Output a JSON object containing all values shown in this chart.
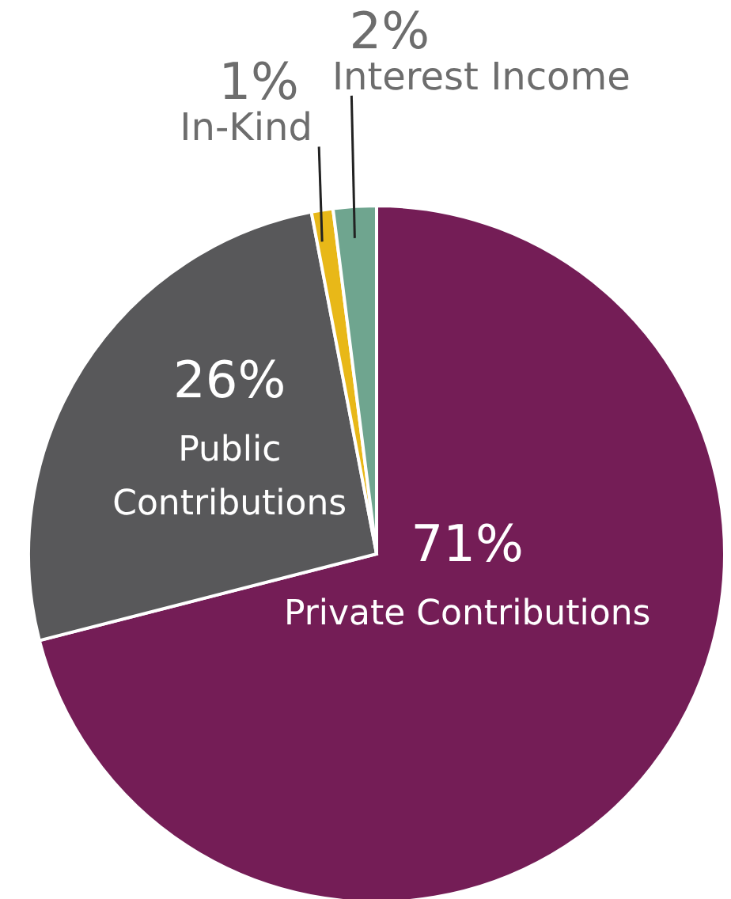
{
  "chart_data": {
    "type": "pie",
    "categories": [
      "Private Contributions",
      "Public Contributions",
      "In-Kind",
      "Interest Income"
    ],
    "values": [
      71,
      26,
      1,
      2
    ],
    "value_labels": [
      "71%",
      "26%",
      "1%",
      "2%"
    ],
    "colors": [
      "#741d56",
      "#58585a",
      "#e8b818",
      "#6fa58f"
    ]
  }
}
